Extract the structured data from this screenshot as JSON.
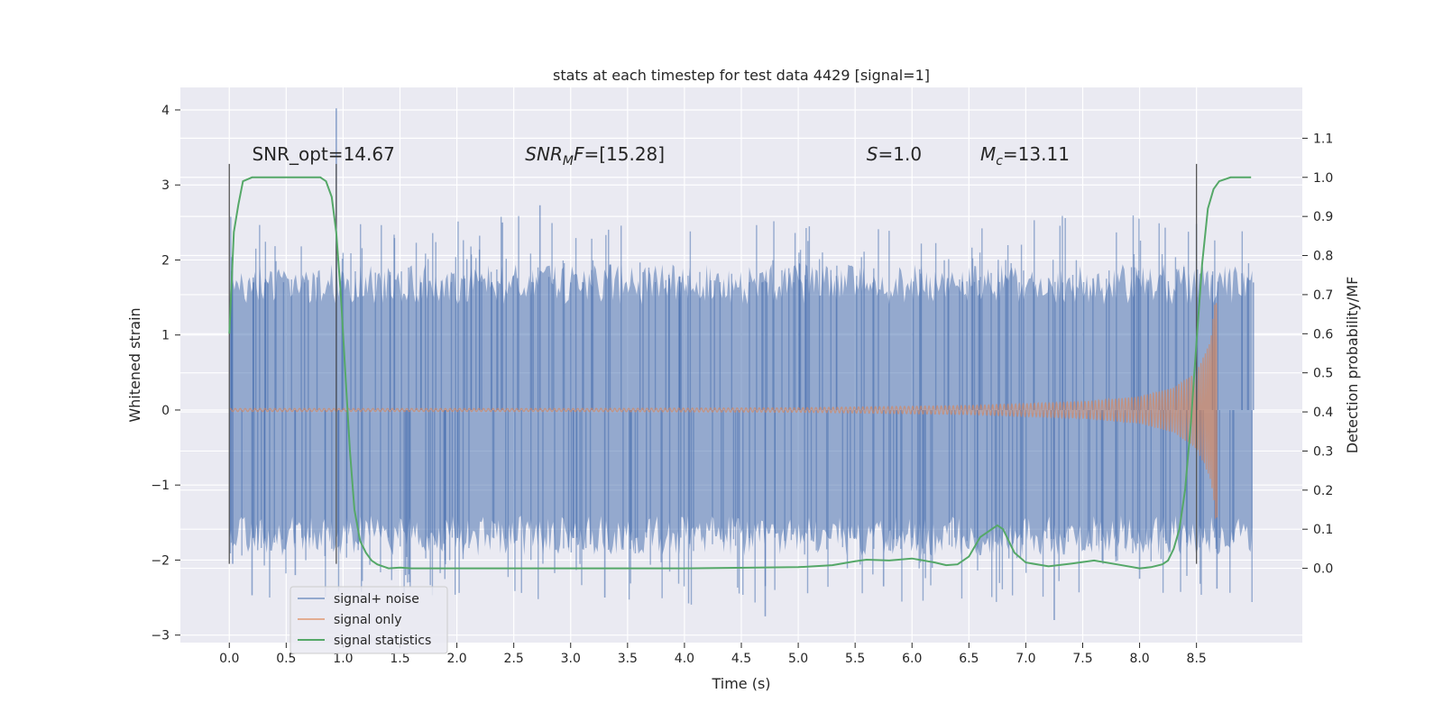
{
  "chart_data": {
    "type": "line",
    "title": "stats at each timestep for test data 4429 [signal=1]",
    "xlabel": "Time (s)",
    "ylabel": "Whitened strain",
    "y2label": "Detection probability/MF",
    "xlim": [
      -0.43,
      9.43
    ],
    "ylim": [
      -3.1,
      4.3
    ],
    "y2lim": [
      -0.19,
      1.23
    ],
    "x_ticks": [
      0.0,
      0.5,
      1.0,
      1.5,
      2.0,
      2.5,
      3.0,
      3.5,
      4.0,
      4.5,
      5.0,
      5.5,
      6.0,
      6.5,
      7.0,
      7.5,
      8.0,
      8.5
    ],
    "x_tick_labels": [
      "0.0",
      "0.5",
      "1.0",
      "1.5",
      "2.0",
      "2.5",
      "3.0",
      "3.5",
      "4.0",
      "4.5",
      "5.0",
      "5.5",
      "6.0",
      "6.5",
      "7.0",
      "7.5",
      "8.0",
      "8.5"
    ],
    "y_ticks": [
      -3,
      -2,
      -1,
      0,
      1,
      2,
      3,
      4
    ],
    "y_tick_labels": [
      "−3",
      "−2",
      "−1",
      "0",
      "1",
      "2",
      "3",
      "4"
    ],
    "y2_ticks": [
      0.0,
      0.1,
      0.2,
      0.3,
      0.4,
      0.5,
      0.6,
      0.7,
      0.8,
      0.9,
      1.0,
      1.1
    ],
    "y2_tick_labels": [
      "0.0",
      "0.1",
      "0.2",
      "0.3",
      "0.4",
      "0.5",
      "0.6",
      "0.7",
      "0.8",
      "0.9",
      "1.0",
      "1.1"
    ],
    "grid": true,
    "legend_position": "bottom-left",
    "annotations": [
      {
        "text": "SNR_opt=14.67",
        "x": 0.2,
        "y": 3.3
      },
      {
        "text": "SNR",
        "sub": "M",
        "tail": "F=[15.28]",
        "italic": true,
        "x": 2.6,
        "y": 3.3
      },
      {
        "text": "S",
        "tail": "=1.0",
        "italic": true,
        "x": 5.6,
        "y": 3.3
      },
      {
        "text": "M",
        "sub": "c",
        "tail": "=13.11",
        "italic": true,
        "x": 6.6,
        "y": 3.3
      }
    ],
    "vlines": [
      {
        "x": 0.0,
        "y1": -2.05,
        "y2": 3.28
      },
      {
        "x": 0.94,
        "y1": -2.05,
        "y2": 3.28
      },
      {
        "x": 8.5,
        "y1": -2.05,
        "y2": 3.28
      }
    ],
    "series": [
      {
        "name": "signal+ noise",
        "color": "#4c72b0",
        "kind": "noise",
        "x_range": [
          0.0,
          8.99
        ],
        "approx_band": [
          -1.8,
          1.8
        ],
        "extremes": [
          [
            0.03,
            -2.05
          ],
          [
            0.2,
            -2.47
          ],
          [
            0.58,
            -2.2
          ],
          [
            0.94,
            4.02
          ],
          [
            1.55,
            -2.2
          ],
          [
            2.4,
            2.5
          ],
          [
            2.73,
            2.73
          ],
          [
            3.3,
            -2.5
          ],
          [
            4.71,
            -2.75
          ],
          [
            5.75,
            -2.35
          ],
          [
            7.25,
            -2.8
          ],
          [
            8.0,
            -2.25
          ],
          [
            8.5,
            2.48
          ],
          [
            8.68,
            -2.38
          ],
          [
            9.0,
            1.7
          ]
        ]
      },
      {
        "name": "signal only",
        "color": "#dd8452",
        "kind": "chirp",
        "x_range": [
          0.0,
          8.68
        ],
        "envelope": [
          [
            0.0,
            0.02
          ],
          [
            3.0,
            0.02
          ],
          [
            5.0,
            0.03
          ],
          [
            6.5,
            0.06
          ],
          [
            7.5,
            0.11
          ],
          [
            8.0,
            0.18
          ],
          [
            8.3,
            0.3
          ],
          [
            8.5,
            0.52
          ],
          [
            8.62,
            0.9
          ],
          [
            8.68,
            1.65
          ]
        ]
      },
      {
        "name": "signal statistics",
        "color": "#55a868",
        "axis": "right",
        "x": [
          0.0,
          0.04,
          0.08,
          0.12,
          0.2,
          0.3,
          0.5,
          0.7,
          0.8,
          0.85,
          0.9,
          0.94,
          0.98,
          1.02,
          1.06,
          1.1,
          1.15,
          1.2,
          1.25,
          1.3,
          1.35,
          1.4,
          1.5,
          1.6,
          1.8,
          2.2,
          3.0,
          4.0,
          5.0,
          5.3,
          5.5,
          5.6,
          5.8,
          6.0,
          6.2,
          6.3,
          6.4,
          6.5,
          6.6,
          6.7,
          6.75,
          6.8,
          6.9,
          7.0,
          7.2,
          7.4,
          7.6,
          7.8,
          8.0,
          8.1,
          8.2,
          8.25,
          8.3,
          8.35,
          8.4,
          8.45,
          8.5,
          8.55,
          8.6,
          8.65,
          8.7,
          8.8,
          8.9,
          8.98
        ],
        "values": [
          0.6,
          0.86,
          0.93,
          0.99,
          1.0,
          1.0,
          1.0,
          1.0,
          1.0,
          0.99,
          0.95,
          0.86,
          0.7,
          0.5,
          0.3,
          0.15,
          0.07,
          0.04,
          0.02,
          0.01,
          0.005,
          0.0,
          0.002,
          0.0,
          0.0,
          0.0,
          0.0,
          0.0,
          0.003,
          0.008,
          0.018,
          0.022,
          0.02,
          0.025,
          0.015,
          0.008,
          0.01,
          0.03,
          0.08,
          0.1,
          0.11,
          0.1,
          0.04,
          0.015,
          0.005,
          0.012,
          0.02,
          0.01,
          0.0,
          0.003,
          0.01,
          0.02,
          0.05,
          0.1,
          0.2,
          0.37,
          0.58,
          0.78,
          0.92,
          0.97,
          0.99,
          1.0,
          1.0,
          1.0
        ]
      }
    ]
  }
}
